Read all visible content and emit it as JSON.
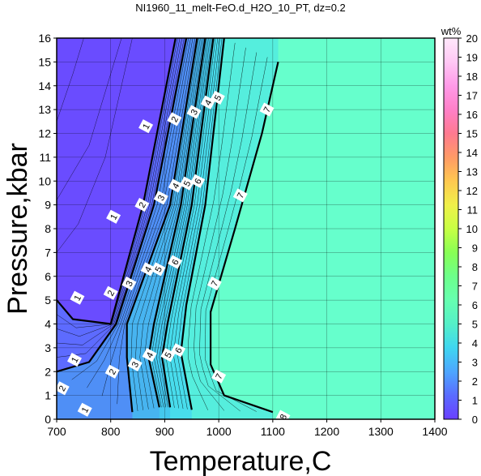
{
  "chart_data": {
    "type": "heatmap",
    "title": "NI1960_11_melt-FeO.d_H2O_10_PT, dz=0.2",
    "xlabel": "Temperature,C",
    "ylabel": "Pressure,kbar",
    "xlim": [
      700,
      1400
    ],
    "ylim": [
      0,
      16
    ],
    "x_ticks": [
      "700",
      "800",
      "900",
      "1000",
      "1100",
      "1200",
      "1300",
      "1400"
    ],
    "y_ticks": [
      "0",
      "1",
      "2",
      "3",
      "4",
      "5",
      "6",
      "7",
      "8",
      "9",
      "10",
      "11",
      "12",
      "13",
      "14",
      "15",
      "16"
    ],
    "grid": true,
    "colorbar": {
      "label": "wt%",
      "range": [
        0,
        20
      ],
      "ticks": [
        "0",
        "1",
        "2",
        "3",
        "4",
        "5",
        "6",
        "7",
        "8",
        "9",
        "10",
        "11",
        "12",
        "13",
        "14",
        "15",
        "16",
        "17",
        "18",
        "19",
        "20"
      ],
      "colors": [
        "#6a3fff",
        "#5a6cff",
        "#4da6ff",
        "#3fd6f0",
        "#55f0c8",
        "#66ffb0",
        "#6dff8a",
        "#88ff55",
        "#c8ff44",
        "#f0f04a",
        "#ffc850",
        "#ff9a66",
        "#ff7a90",
        "#ff80c8",
        "#ff9ae8",
        "#ffc8f4",
        "#ffe8fb"
      ]
    },
    "plateau_value": 7.2,
    "contours": [
      {
        "level": 1,
        "label": "1",
        "points": [
          [
            700,
            5.0
          ],
          [
            730,
            4.2
          ],
          [
            800,
            4.0
          ],
          [
            860,
            9.0
          ],
          [
            920,
            16.0
          ]
        ]
      },
      {
        "level": 2,
        "label": "2",
        "points": [
          [
            700,
            2.0
          ],
          [
            760,
            2.4
          ],
          [
            810,
            4.0
          ],
          [
            880,
            9.0
          ],
          [
            940,
            16.0
          ]
        ]
      },
      {
        "level": 3,
        "label": "3",
        "points": [
          [
            840,
            0.3
          ],
          [
            830,
            2.6
          ],
          [
            830,
            4.0
          ],
          [
            910,
            9.0
          ],
          [
            960,
            16.0
          ]
        ]
      },
      {
        "level": 4,
        "label": "4",
        "points": [
          [
            890,
            0.5
          ],
          [
            870,
            2.6
          ],
          [
            880,
            4.0
          ],
          [
            930,
            9.0
          ],
          [
            975,
            16.0
          ]
        ]
      },
      {
        "level": 5,
        "label": "5",
        "points": [
          [
            910,
            0.5
          ],
          [
            895,
            2.6
          ],
          [
            905,
            4.0
          ],
          [
            950,
            9.0
          ],
          [
            990,
            16.0
          ]
        ]
      },
      {
        "level": 6,
        "label": "6",
        "points": [
          [
            950,
            0.4
          ],
          [
            930,
            2.8
          ],
          [
            940,
            4.8
          ],
          [
            975,
            9.0
          ],
          [
            1010,
            16.0
          ]
        ]
      },
      {
        "level": 7,
        "label": "7",
        "points": [
          [
            1100,
            0.3
          ],
          [
            1010,
            1.0
          ],
          [
            985,
            2.3
          ],
          [
            985,
            4.5
          ],
          [
            1030,
            8.0
          ],
          [
            1080,
            12.0
          ],
          [
            1110,
            15.0
          ]
        ]
      }
    ],
    "contour_labels": [
      {
        "label": "1",
        "x": 865,
        "y": 12.3
      },
      {
        "label": "1",
        "x": 805,
        "y": 8.5
      },
      {
        "label": "1",
        "x": 738,
        "y": 5.1
      },
      {
        "label": "1",
        "x": 733,
        "y": 2.5
      },
      {
        "label": "1",
        "x": 752,
        "y": 0.4
      },
      {
        "label": "2",
        "x": 918,
        "y": 12.6
      },
      {
        "label": "2",
        "x": 858,
        "y": 9.0
      },
      {
        "label": "2",
        "x": 800,
        "y": 5.3
      },
      {
        "label": "2",
        "x": 803,
        "y": 2.0
      },
      {
        "label": "2",
        "x": 710,
        "y": 1.3
      },
      {
        "label": "3",
        "x": 954,
        "y": 12.9
      },
      {
        "label": "3",
        "x": 893,
        "y": 9.3
      },
      {
        "label": "3",
        "x": 834,
        "y": 5.7
      },
      {
        "label": "3",
        "x": 845,
        "y": 2.3
      },
      {
        "label": "4",
        "x": 980,
        "y": 13.3
      },
      {
        "label": "4",
        "x": 920,
        "y": 9.8
      },
      {
        "label": "4",
        "x": 869,
        "y": 6.3
      },
      {
        "label": "4",
        "x": 872,
        "y": 2.7
      },
      {
        "label": "5",
        "x": 998,
        "y": 13.5
      },
      {
        "label": "5",
        "x": 941,
        "y": 9.9
      },
      {
        "label": "5",
        "x": 888,
        "y": 6.3
      },
      {
        "label": "5",
        "x": 906,
        "y": 2.7
      },
      {
        "label": "6",
        "x": 961,
        "y": 10.0
      },
      {
        "label": "6",
        "x": 919,
        "y": 6.6
      },
      {
        "label": "6",
        "x": 925,
        "y": 2.9
      },
      {
        "label": "7",
        "x": 1089,
        "y": 13.0
      },
      {
        "label": "7",
        "x": 1040,
        "y": 9.4
      },
      {
        "label": "7",
        "x": 992,
        "y": 5.7
      },
      {
        "label": "7",
        "x": 1000,
        "y": 1.8
      },
      {
        "label": "8",
        "x": 1119,
        "y": 0.1
      }
    ]
  }
}
